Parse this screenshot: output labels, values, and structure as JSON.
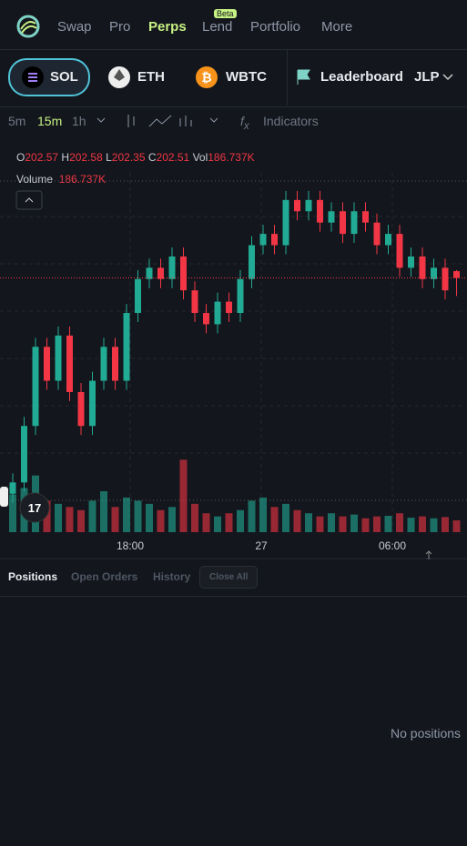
{
  "nav": {
    "items": [
      "Swap",
      "Pro",
      "Perps",
      "Lend",
      "Portfolio",
      "More"
    ],
    "badge": "Beta"
  },
  "tokens": [
    "SOL",
    "ETH",
    "WBTC"
  ],
  "leaderboard": "Leaderboard",
  "pool": "JLP",
  "toolbar": {
    "intervals": [
      "5m",
      "15m",
      "1h"
    ],
    "indicators": "Indicators"
  },
  "legend": {
    "open": "O",
    "high": "H",
    "low": "L",
    "close": "C",
    "vol": "Vol",
    "volume": "Volume"
  },
  "chart_data": {
    "type": "candlestick",
    "open": [
      200.6,
      200.7,
      201.2,
      201.9,
      201.6,
      202.0,
      201.5,
      201.2,
      201.6,
      201.9,
      201.6,
      202.2,
      202.5,
      202.6,
      202.5,
      202.7,
      202.4,
      202.2,
      202.1,
      202.3,
      202.2,
      202.5,
      202.8,
      202.9,
      202.8,
      203.2,
      203.1,
      203.2,
      203.0,
      203.1,
      202.9,
      203.1,
      203.0,
      202.8,
      202.9,
      202.6,
      202.7,
      202.5,
      202.6,
      202.57
    ],
    "high": [
      200.78,
      201.28,
      201.98,
      201.98,
      202.08,
      202.08,
      201.58,
      201.68,
      201.98,
      201.98,
      202.28,
      202.58,
      202.68,
      202.68,
      202.78,
      202.78,
      202.48,
      202.28,
      202.38,
      202.38,
      202.58,
      202.88,
      202.98,
      202.98,
      203.28,
      203.28,
      203.28,
      203.28,
      203.18,
      203.18,
      203.18,
      203.18,
      203.08,
      202.98,
      202.98,
      202.78,
      202.78,
      202.68,
      202.68,
      202.58
    ],
    "low": [
      200.52,
      200.62,
      201.12,
      201.52,
      201.52,
      201.42,
      201.12,
      201.12,
      201.52,
      201.52,
      201.52,
      202.12,
      202.42,
      202.42,
      202.42,
      202.32,
      202.12,
      202.02,
      202.02,
      202.12,
      202.12,
      202.42,
      202.72,
      202.72,
      202.72,
      203.02,
      203.02,
      202.92,
      202.92,
      202.82,
      202.82,
      202.92,
      202.72,
      202.72,
      202.52,
      202.52,
      202.42,
      202.42,
      202.32,
      202.35
    ],
    "close": [
      200.7,
      201.2,
      201.9,
      201.6,
      202.0,
      201.5,
      201.2,
      201.6,
      201.9,
      201.6,
      202.2,
      202.5,
      202.6,
      202.5,
      202.7,
      202.4,
      202.2,
      202.1,
      202.3,
      202.2,
      202.5,
      202.8,
      202.9,
      202.8,
      203.2,
      203.1,
      203.2,
      203.0,
      203.1,
      202.9,
      203.1,
      203.0,
      202.8,
      202.9,
      202.6,
      202.7,
      202.5,
      202.6,
      202.4,
      202.51
    ],
    "volume": [
      600,
      700,
      900,
      500,
      450,
      400,
      350,
      500,
      650,
      400,
      550,
      500,
      450,
      350,
      400,
      1150,
      450,
      300,
      250,
      300,
      350,
      500,
      550,
      400,
      450,
      350,
      300,
      250,
      300,
      250,
      280,
      220,
      250,
      260,
      300,
      230,
      250,
      220,
      240,
      186.737
    ],
    "value_labels": {
      "39": "186.737K"
    },
    "ylim": [
      200.3,
      203.4
    ],
    "vlim": [
      0,
      1300
    ],
    "up_color": "#22ab94",
    "down_color": "#f23645",
    "time_labels": [
      "18:00",
      "27",
      "06:00"
    ]
  },
  "tabs": [
    "Positions",
    "Open Orders",
    "History",
    "Close All"
  ],
  "empty": "No positions"
}
